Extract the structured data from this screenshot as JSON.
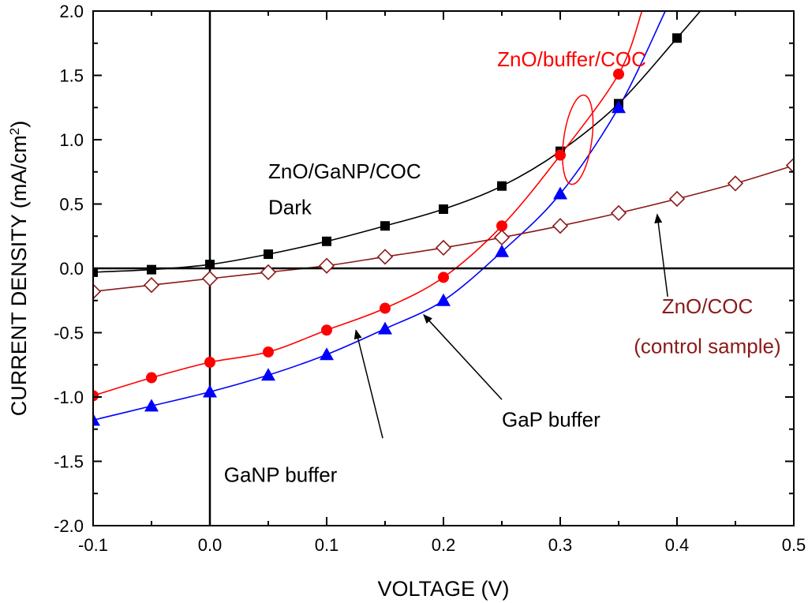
{
  "chart_data": {
    "type": "line",
    "title": "",
    "xlabel": "VOLTAGE (V)",
    "ylabel": "CURRENT DENSITY (mA/cm",
    "ylabel_sup": "2",
    "ylabel_end": ")",
    "xlim": [
      -0.1,
      0.5
    ],
    "ylim": [
      -2.0,
      2.0
    ],
    "x_ticks": [
      "-0.1",
      "0.0",
      "0.1",
      "0.2",
      "0.3",
      "0.4",
      "0.5"
    ],
    "y_ticks": [
      "-2.0",
      "-1.5",
      "-1.0",
      "-0.5",
      "0.0",
      "0.5",
      "1.0",
      "1.5",
      "2.0"
    ],
    "grid": false,
    "series": [
      {
        "marker": "square",
        "color": "#000000",
        "x": [
          -0.1,
          -0.05,
          0.0,
          0.05,
          0.1,
          0.15,
          0.2,
          0.25,
          0.3,
          0.35,
          0.4
        ],
        "y": [
          -0.03,
          -0.01,
          0.03,
          0.11,
          0.21,
          0.33,
          0.46,
          0.64,
          0.91,
          1.28,
          1.79
        ],
        "curve": [
          [
            0.42,
            2.0
          ]
        ]
      },
      {
        "marker": "circle",
        "color": "#ff0000",
        "x": [
          -0.1,
          -0.05,
          0.0,
          0.05,
          0.1,
          0.15,
          0.2,
          0.25,
          0.3,
          0.35
        ],
        "y": [
          -0.99,
          -0.85,
          -0.73,
          -0.65,
          -0.48,
          -0.31,
          -0.07,
          0.33,
          0.88,
          1.51
        ],
        "curve": [
          [
            0.37,
            2.0
          ]
        ]
      },
      {
        "marker": "triangle",
        "color": "#0000ff",
        "x": [
          -0.1,
          -0.05,
          0.0,
          0.05,
          0.1,
          0.15,
          0.2,
          0.25,
          0.3,
          0.35
        ],
        "y": [
          -1.18,
          -1.07,
          -0.96,
          -0.83,
          -0.67,
          -0.47,
          -0.25,
          0.13,
          0.58,
          1.25
        ],
        "curve": [
          [
            0.39,
            2.0
          ]
        ]
      },
      {
        "marker": "diamond-open",
        "color": "#8b1a1a",
        "x": [
          -0.1,
          -0.05,
          0.0,
          0.05,
          0.1,
          0.15,
          0.2,
          0.25,
          0.3,
          0.35,
          0.4,
          0.45,
          0.5
        ],
        "y": [
          -0.18,
          -0.13,
          -0.08,
          -0.03,
          0.02,
          0.09,
          0.16,
          0.24,
          0.33,
          0.43,
          0.54,
          0.66,
          0.8
        ],
        "curve": []
      }
    ],
    "annotations": [
      {
        "id": "zno-buffer-coc",
        "text": "ZnO/buffer/COC",
        "color": "#ff0000",
        "x": 0.246,
        "y": 1.57,
        "anchor": "start"
      },
      {
        "id": "zno-ganp-coc",
        "text": "ZnO/GaNP/COC",
        "color": "#000000",
        "x": 0.05,
        "y": 0.7,
        "anchor": "start"
      },
      {
        "id": "dark",
        "text": "Dark",
        "color": "#000000",
        "x": 0.05,
        "y": 0.42,
        "anchor": "start"
      },
      {
        "id": "zno-coc",
        "text": "ZnO/COC",
        "color": "#8b1a1a",
        "x": 0.426,
        "y": -0.35,
        "anchor": "middle"
      },
      {
        "id": "control-sample",
        "text": "(control sample)",
        "color": "#8b1a1a",
        "x": 0.426,
        "y": -0.66,
        "anchor": "middle"
      },
      {
        "id": "gap-buffer",
        "text": "GaP buffer",
        "color": "#000000",
        "x": 0.25,
        "y": -1.23,
        "anchor": "start"
      },
      {
        "id": "ganp-buffer",
        "text": "GaNP buffer",
        "color": "#000000",
        "x": 0.012,
        "y": -1.66,
        "anchor": "start"
      }
    ],
    "arrows": [
      {
        "id": "arrow-ganp-buffer",
        "from": [
          0.148,
          -1.32
        ],
        "to": [
          0.125,
          -0.48
        ]
      },
      {
        "id": "arrow-gap-buffer",
        "from": [
          0.25,
          -1.02
        ],
        "to": [
          0.183,
          -0.36
        ]
      },
      {
        "id": "arrow-zno-coc",
        "from": [
          0.392,
          -0.22
        ],
        "to": [
          0.383,
          0.42
        ]
      }
    ],
    "highlight_ellipse": {
      "cx": 0.315,
      "cy": 1.0,
      "rx": 0.012,
      "ry": 0.35,
      "color": "#ff0000"
    }
  }
}
